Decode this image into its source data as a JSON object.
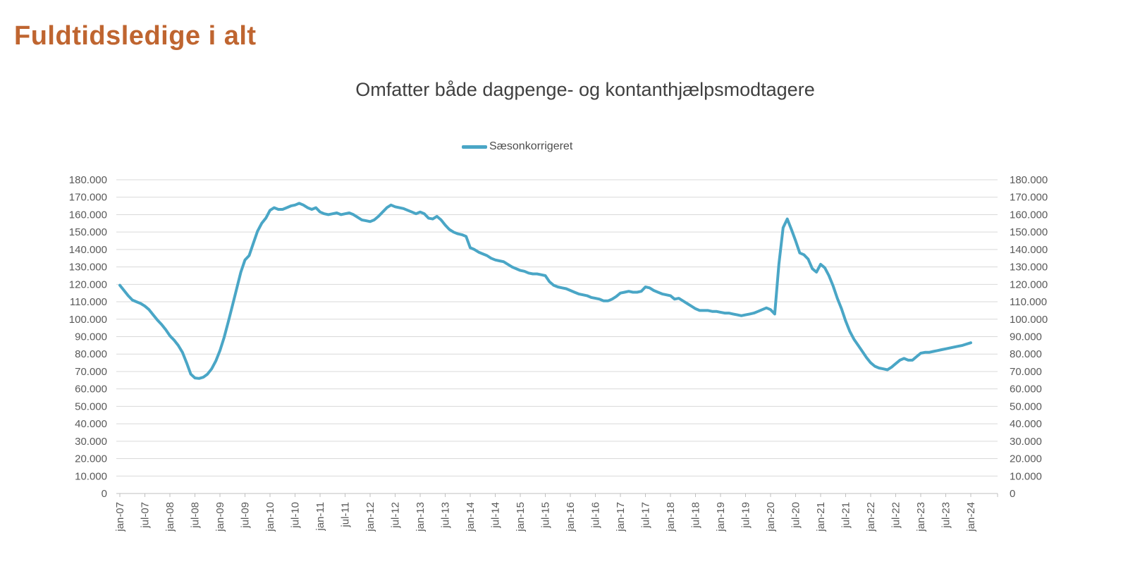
{
  "page": {
    "title": "Fuldtidsledige i alt"
  },
  "chart": {
    "title": "Omfatter både dagpenge- og kontanthjælpsmodtagere",
    "legend": [
      "Sæsonkorrigeret"
    ]
  },
  "colors": {
    "page_title": "#bf6530",
    "chart_title": "#404040",
    "axis_text": "#595959",
    "legend_text": "#4d4d4d",
    "gridline": "#d9d9d9",
    "axis_line": "#bfbfbf",
    "line": "#4aa6c6"
  },
  "chart_data": {
    "type": "line",
    "title": "Omfatter både dagpenge- og kontanthjælpsmodtagere",
    "legend_position": "top",
    "grid": "horizontal",
    "x_unit": "month",
    "x_start": "jan-07",
    "x_end": "jan-24",
    "x_tick_labels": [
      "jan-07",
      "jul-07",
      "jan-08",
      "jul-08",
      "jan-09",
      "jul-09",
      "jan-10",
      "jul-10",
      "jan-11",
      "jul-11",
      "jan-12",
      "jul-12",
      "jan-13",
      "jul-13",
      "jan-14",
      "jul-14",
      "jan-15",
      "jul-15",
      "jan-16",
      "jul-16",
      "jan-17",
      "jul-17",
      "jan-18",
      "jul-18",
      "jan-19",
      "jul-19",
      "jan-20",
      "jul-20",
      "jan-21",
      "jul-21",
      "jan-22",
      "jul-22",
      "jan-23",
      "jul-23",
      "jan-24"
    ],
    "y_axis": {
      "min": 0,
      "max": 180000,
      "step": 10000,
      "sides": [
        "left",
        "right"
      ],
      "tick_labels": [
        "0",
        "10.000",
        "20.000",
        "30.000",
        "40.000",
        "50.000",
        "60.000",
        "70.000",
        "80.000",
        "90.000",
        "100.000",
        "110.000",
        "120.000",
        "130.000",
        "140.000",
        "150.000",
        "160.000",
        "170.000",
        "180.000"
      ]
    },
    "series": [
      {
        "name": "Sæsonkorrigeret",
        "color": "#4aa6c6",
        "values": [
          119500,
          116500,
          113500,
          111000,
          110000,
          109000,
          107500,
          105500,
          102500,
          99500,
          97000,
          94000,
          90500,
          88000,
          85000,
          81000,
          75000,
          68500,
          66300,
          66000,
          66700,
          68500,
          71500,
          76000,
          82000,
          89500,
          98500,
          108000,
          117500,
          127000,
          134000,
          136500,
          143500,
          150500,
          155000,
          158000,
          162500,
          164000,
          163000,
          163000,
          164000,
          165000,
          165500,
          166500,
          165500,
          164000,
          163000,
          164000,
          161500,
          160500,
          160000,
          160500,
          161000,
          160000,
          160500,
          161000,
          160000,
          158500,
          157000,
          156500,
          156000,
          157000,
          159000,
          161500,
          164000,
          165500,
          164500,
          164000,
          163500,
          162500,
          161500,
          160500,
          161500,
          160500,
          158000,
          157500,
          159000,
          157000,
          154000,
          151500,
          150000,
          149000,
          148500,
          147500,
          141000,
          140000,
          138500,
          137500,
          136500,
          135000,
          134000,
          133500,
          133000,
          131500,
          130000,
          129000,
          128000,
          127500,
          126500,
          126000,
          126000,
          125500,
          125000,
          121500,
          119500,
          118500,
          118000,
          117500,
          116500,
          115500,
          114500,
          114000,
          113500,
          112500,
          112000,
          111500,
          110500,
          110500,
          111500,
          113000,
          115000,
          115500,
          116000,
          115500,
          115500,
          116000,
          118500,
          118000,
          116500,
          115500,
          114500,
          114000,
          113500,
          111500,
          112000,
          110500,
          109000,
          107500,
          106000,
          105000,
          105000,
          105000,
          104500,
          104500,
          104000,
          103500,
          103500,
          103000,
          102500,
          102000,
          102500,
          103000,
          103500,
          104500,
          105500,
          106500,
          105500,
          103000,
          131500,
          152500,
          157500,
          151500,
          145000,
          138000,
          137000,
          134500,
          129000,
          127000,
          131500,
          129500,
          125000,
          119000,
          112000,
          106000,
          99000,
          93000,
          88500,
          85000,
          81500,
          78000,
          75000,
          73000,
          72000,
          71500,
          71000,
          72500,
          74500,
          76500,
          77500,
          76500,
          76500,
          78500,
          80500,
          81000,
          81000,
          81500,
          82000,
          82500,
          83000,
          83500,
          84000,
          84500,
          85000,
          85750,
          86500
        ]
      }
    ]
  }
}
